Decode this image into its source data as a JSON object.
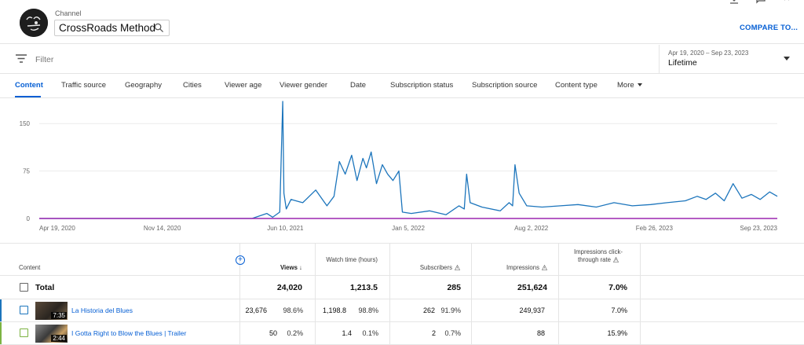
{
  "header": {
    "channel_label": "Channel",
    "channel_name": "CrossRoads Method",
    "compare_label": "COMPARE TO..."
  },
  "filter": {
    "placeholder": "Filter"
  },
  "date_selector": {
    "range": "Apr 19, 2020 – Sep 23, 2023",
    "value": "Lifetime"
  },
  "tabs": [
    {
      "label": "Content",
      "active": true
    },
    {
      "label": "Traffic source"
    },
    {
      "label": "Geography"
    },
    {
      "label": "Cities"
    },
    {
      "label": "Viewer age"
    },
    {
      "label": "Viewer gender"
    },
    {
      "label": "Date"
    },
    {
      "label": "Subscription status"
    },
    {
      "label": "Subscription source"
    },
    {
      "label": "Content type"
    },
    {
      "label": "More"
    }
  ],
  "chart_data": {
    "type": "line",
    "y_ticks": [
      "150",
      "75",
      "0"
    ],
    "ylim": [
      0,
      190
    ],
    "x_ticks": [
      "Apr 19, 2020",
      "Nov 14, 2020",
      "Jun 10, 2021",
      "Jan 5, 2022",
      "Aug 2, 2022",
      "Feb 26, 2023",
      "Sep 23, 2023"
    ],
    "series": [
      {
        "color": "#1c75bc",
        "x": [
          "2020-04-19",
          "2021-03-01",
          "2021-04-15",
          "2021-05-10",
          "2021-05-20",
          "2021-06-01",
          "2021-06-06",
          "2021-06-08",
          "2021-06-12",
          "2021-06-20",
          "2021-07-10",
          "2021-08-01",
          "2021-08-20",
          "2021-09-01",
          "2021-09-10",
          "2021-09-20",
          "2021-10-01",
          "2021-10-10",
          "2021-10-20",
          "2021-10-26",
          "2021-11-03",
          "2021-11-12",
          "2021-11-22",
          "2021-12-01",
          "2021-12-10",
          "2021-12-20",
          "2021-12-26",
          "2022-01-10",
          "2022-02-10",
          "2022-03-10",
          "2022-04-01",
          "2022-04-10",
          "2022-04-14",
          "2022-04-20",
          "2022-05-10",
          "2022-06-10",
          "2022-06-25",
          "2022-07-01",
          "2022-07-05",
          "2022-07-12",
          "2022-07-25",
          "2022-08-20",
          "2022-09-20",
          "2022-10-20",
          "2022-11-20",
          "2022-12-20",
          "2023-01-20",
          "2023-02-20",
          "2023-03-20",
          "2023-04-20",
          "2023-05-10",
          "2023-05-25",
          "2023-06-10",
          "2023-06-25",
          "2023-07-10",
          "2023-07-25",
          "2023-08-10",
          "2023-08-25",
          "2023-09-10",
          "2023-09-23"
        ],
        "values": [
          0,
          0,
          0,
          8,
          2,
          10,
          185,
          40,
          15,
          30,
          25,
          45,
          20,
          35,
          90,
          70,
          100,
          60,
          95,
          80,
          105,
          55,
          85,
          70,
          60,
          75,
          10,
          8,
          12,
          6,
          20,
          15,
          70,
          25,
          18,
          12,
          25,
          20,
          85,
          40,
          20,
          18,
          20,
          22,
          18,
          25,
          20,
          22,
          25,
          28,
          35,
          30,
          40,
          28,
          55,
          32,
          38,
          30,
          42,
          35
        ]
      },
      {
        "color": "#9c27b0",
        "x": [
          "2020-04-19",
          "2023-09-23"
        ],
        "values": [
          0,
          0
        ]
      }
    ]
  },
  "table": {
    "columns": [
      {
        "label": "Content"
      },
      {
        "label": "Views",
        "sort": "↓"
      },
      {
        "label": "Watch time (hours)"
      },
      {
        "label": "Subscribers"
      },
      {
        "label": "Impressions"
      },
      {
        "label": "Impressions click-through rate"
      }
    ],
    "total": {
      "label": "Total",
      "views": "24,020",
      "watch_time": "1,213.5",
      "subscribers": "285",
      "impressions": "251,624",
      "ctr": "7.0%"
    },
    "rows": [
      {
        "title": "La Historia del Blues",
        "duration": "7:35",
        "stripe_color": "#1c75bc",
        "views": "23,676",
        "views_pct": "98.6%",
        "watch_time": "1,198.8",
        "watch_pct": "98.8%",
        "subscribers": "262",
        "subs_pct": "91.9%",
        "impressions": "249,937",
        "ctr": "7.0%"
      },
      {
        "title": "I Gotta Right to Blow the Blues | Trailer",
        "duration": "2:44",
        "stripe_color": "#7cb342",
        "views": "50",
        "views_pct": "0.2%",
        "watch_time": "1.4",
        "watch_pct": "0.1%",
        "subscribers": "2",
        "subs_pct": "0.7%",
        "impressions": "88",
        "ctr": "15.9%"
      }
    ]
  }
}
